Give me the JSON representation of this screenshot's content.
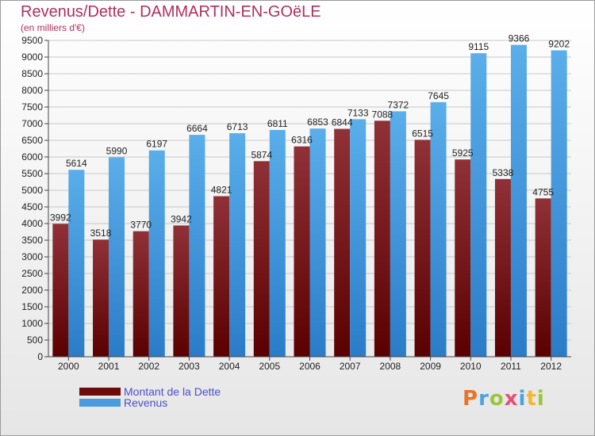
{
  "title": "Revenus/Dette - DAMMARTIN-EN-GOëLE",
  "subtitle": "(en milliers d'€)",
  "logo": {
    "text": "Proxiti",
    "letter_colors": [
      "#e8742a",
      "#4aa3df",
      "#9bc53d",
      "#e94e77",
      "#4aa3df",
      "#f2b632",
      "#9bc53d"
    ]
  },
  "colors": {
    "dette": "#7a1f24",
    "revenus": "#4a9be0",
    "title": "#b0305a",
    "legend_text": "#4a50c8"
  },
  "legend": [
    {
      "label": "Montant de la Dette",
      "color": "#6b0b0b"
    },
    {
      "label": "Revenus",
      "color": "#4a9be0"
    }
  ],
  "chart_data": {
    "type": "bar",
    "title": "Revenus/Dette - DAMMARTIN-EN-GOëLE",
    "subtitle": "(en milliers d'€)",
    "categories": [
      "2000",
      "2001",
      "2002",
      "2003",
      "2004",
      "2005",
      "2006",
      "2007",
      "2008",
      "2009",
      "2010",
      "2011",
      "2012"
    ],
    "series": [
      {
        "name": "Montant de la Dette",
        "values": [
          3992,
          3518,
          3770,
          3942,
          4821,
          5874,
          6316,
          6844,
          7088,
          6515,
          5925,
          5338,
          4755
        ],
        "labels": [
          "3992",
          "3518",
          "3770",
          "3942",
          "4821",
          "5874",
          "6316",
          "6844",
          "7088",
          "6515",
          "5925",
          "5338",
          "4755"
        ]
      },
      {
        "name": "Revenus",
        "values": [
          5614,
          5990,
          6197,
          6664,
          6713,
          6811,
          6853,
          7133,
          7372,
          7645,
          9115,
          9366,
          9202
        ],
        "labels": [
          "5614",
          "5990",
          "6197",
          "6664",
          "6713",
          "6811",
          "6853",
          "7133",
          "7372",
          "7645",
          "9115",
          "9366",
          "9202"
        ]
      }
    ],
    "ylim": [
      0,
      9500
    ],
    "yticks": [
      "0",
      "500",
      "1000",
      "1500",
      "2000",
      "2500",
      "3000",
      "3500",
      "4000",
      "4500",
      "5000",
      "5500",
      "6000",
      "6500",
      "7000",
      "7500",
      "8000",
      "8500",
      "9000",
      "9500"
    ],
    "grid": true,
    "legend_position": "bottom-left"
  }
}
